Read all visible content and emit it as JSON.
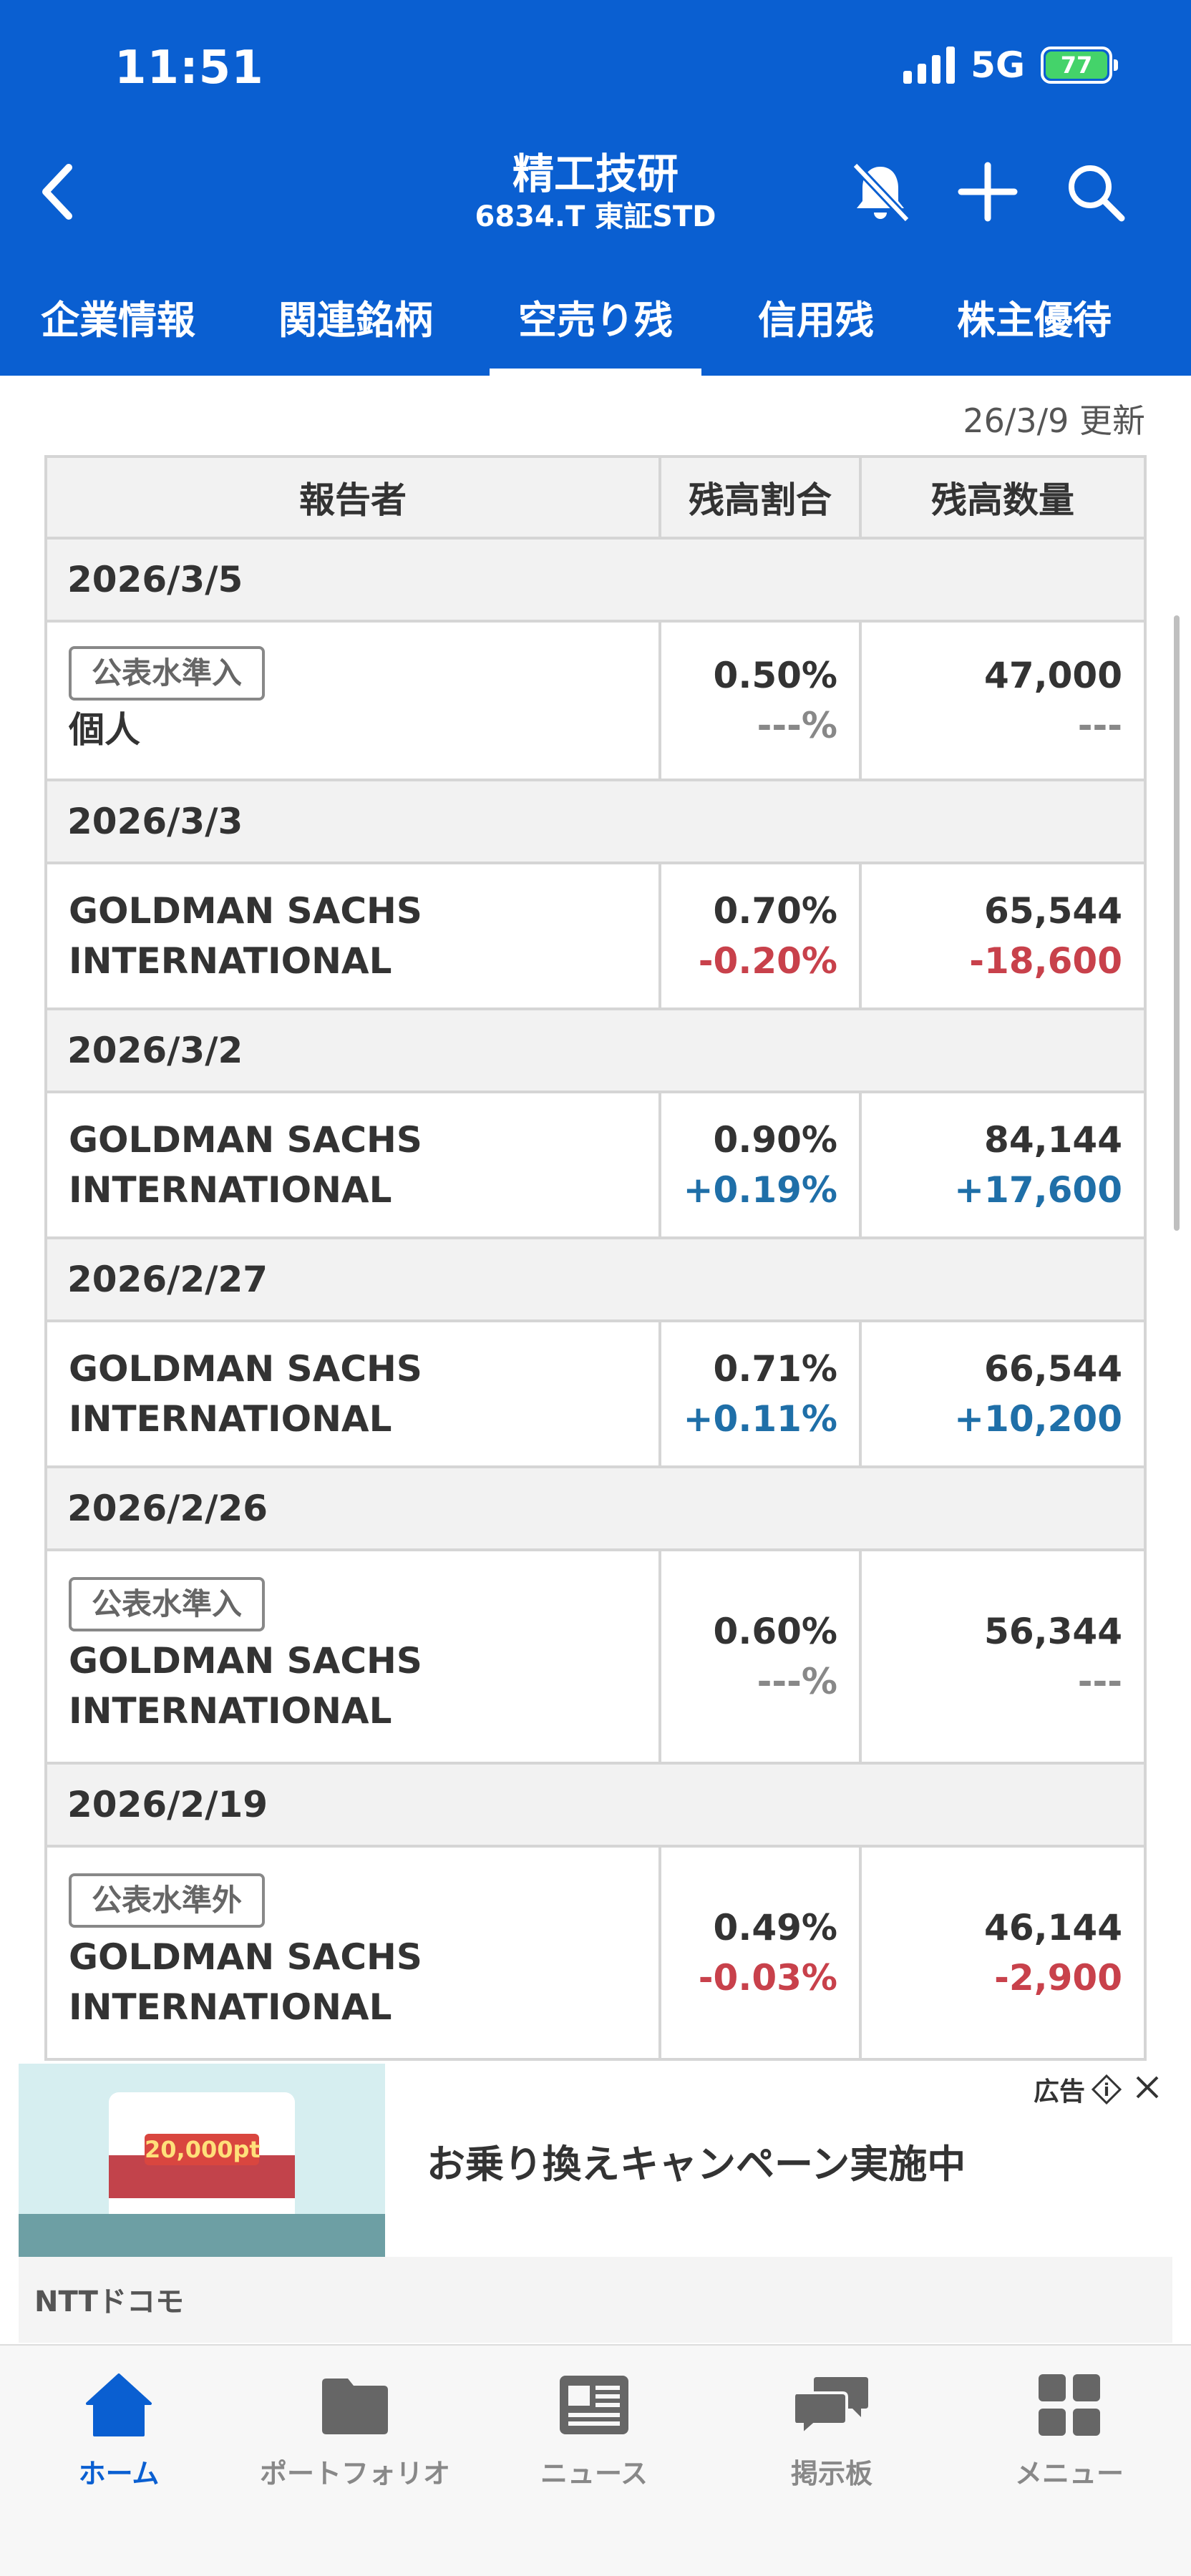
{
  "status_bar": {
    "time": "11:51",
    "network": "5G",
    "battery": "77"
  },
  "header": {
    "title": "精工技研",
    "subtitle": "6834.T 東証STD",
    "icons": [
      "back-icon",
      "bell-off-icon",
      "plus-icon",
      "search-icon"
    ]
  },
  "tabs": [
    {
      "label": "企業情報"
    },
    {
      "label": "関連銘柄"
    },
    {
      "label": "空売り残"
    },
    {
      "label": "信用残"
    },
    {
      "label": "株主優待"
    }
  ],
  "active_tab": "空売り残",
  "updated": "26/3/9 更新",
  "table": {
    "headers": {
      "reporter": "報告者",
      "ratio": "残高割合",
      "quantity": "残高数量"
    },
    "groups": [
      {
        "date": "2026/3/5",
        "badge": "公表水準入",
        "reporter": "個人",
        "ratio": "0.50%",
        "ratio_change": "---%",
        "quantity": "47,000",
        "quantity_change": "---"
      },
      {
        "date": "2026/3/3",
        "badge": "",
        "reporter": "GOLDMAN SACHS INTERNATIONAL",
        "ratio": "0.70%",
        "ratio_change": "-0.20%",
        "quantity": "65,544",
        "quantity_change": "-18,600"
      },
      {
        "date": "2026/3/2",
        "badge": "",
        "reporter": "GOLDMAN SACHS INTERNATIONAL",
        "ratio": "0.90%",
        "ratio_change": "+0.19%",
        "quantity": "84,144",
        "quantity_change": "+17,600"
      },
      {
        "date": "2026/2/27",
        "badge": "",
        "reporter": "GOLDMAN SACHS INTERNATIONAL",
        "ratio": "0.71%",
        "ratio_change": "+0.11%",
        "quantity": "66,544",
        "quantity_change": "+10,200"
      },
      {
        "date": "2026/2/26",
        "badge": "公表水準入",
        "reporter": "GOLDMAN SACHS INTERNATIONAL",
        "ratio": "0.60%",
        "ratio_change": "---%",
        "quantity": "56,344",
        "quantity_change": "---"
      },
      {
        "date": "2026/2/19",
        "badge": "公表水準外",
        "reporter": "GOLDMAN SACHS INTERNATIONAL",
        "ratio": "0.49%",
        "ratio_change": "-0.03%",
        "quantity": "46,144",
        "quantity_change": "-2,900"
      }
    ]
  },
  "ad": {
    "label": "広告",
    "headline": "お乗り換えキャンペーン実施中",
    "advertiser": "NTTドコモ",
    "image_amount": "20,000pt"
  },
  "bottom_nav": [
    {
      "label": "ホーム",
      "icon": "home-icon"
    },
    {
      "label": "ポートフォリオ",
      "icon": "folder-icon"
    },
    {
      "label": "ニュース",
      "icon": "news-icon"
    },
    {
      "label": "掲示板",
      "icon": "chat-icon"
    },
    {
      "label": "メニュー",
      "icon": "grid-icon"
    }
  ],
  "colors": {
    "brand": "#0a5fd1",
    "negative": "#c8414b",
    "positive": "#1f6fa8"
  }
}
